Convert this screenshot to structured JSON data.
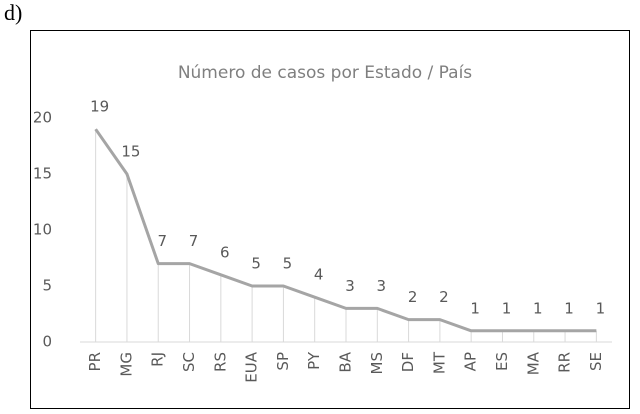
{
  "panel_label": "d)",
  "chart_data": {
    "type": "line",
    "title": "Número de casos por Estado / País",
    "categories": [
      "PR",
      "MG",
      "RJ",
      "SC",
      "RS",
      "EUA",
      "SP",
      "PY",
      "BA",
      "MS",
      "DF",
      "MT",
      "AP",
      "ES",
      "MA",
      "RR",
      "SE"
    ],
    "values": [
      19,
      15,
      7,
      7,
      6,
      5,
      5,
      4,
      3,
      3,
      2,
      2,
      1,
      1,
      1,
      1,
      1
    ],
    "color": "#a5a5a5",
    "ylim": [
      0,
      20
    ],
    "yticks": [
      0,
      5,
      10,
      15,
      20
    ],
    "grid": false,
    "drop_lines": true
  }
}
